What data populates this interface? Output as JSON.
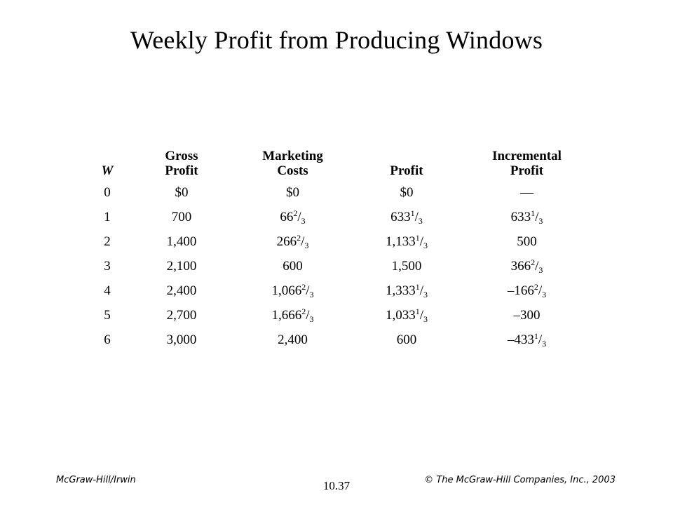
{
  "slide": {
    "title": "Weekly Profit from Producing Windows"
  },
  "table": {
    "headers": [
      [
        "W"
      ],
      [
        "Gross",
        "Profit"
      ],
      [
        "Marketing",
        "Costs"
      ],
      [
        "Profit"
      ],
      [
        "Incremental",
        "Profit"
      ]
    ],
    "rows": [
      [
        "0",
        "$0",
        "$0",
        "$0",
        "—"
      ],
      [
        "1",
        "700",
        "66 2/3",
        "633 1/3",
        "633 1/3"
      ],
      [
        "2",
        "1,400",
        "266 2/3",
        "1,133 1/3",
        "500"
      ],
      [
        "3",
        "2,100",
        "600",
        "1,500",
        "366 2/3"
      ],
      [
        "4",
        "2,400",
        "1,066 2/3",
        "1,333 1/3",
        "–166 2/3"
      ],
      [
        "5",
        "2,700",
        "1,666 2/3",
        "1,033 1/3",
        "–300"
      ],
      [
        "6",
        "3,000",
        "2,400",
        "600",
        "–433 1/3"
      ]
    ]
  },
  "footer": {
    "left": "McGraw-Hill/Irwin",
    "center": "10.37",
    "right": "© The McGraw-Hill Companies, Inc., 2003"
  }
}
